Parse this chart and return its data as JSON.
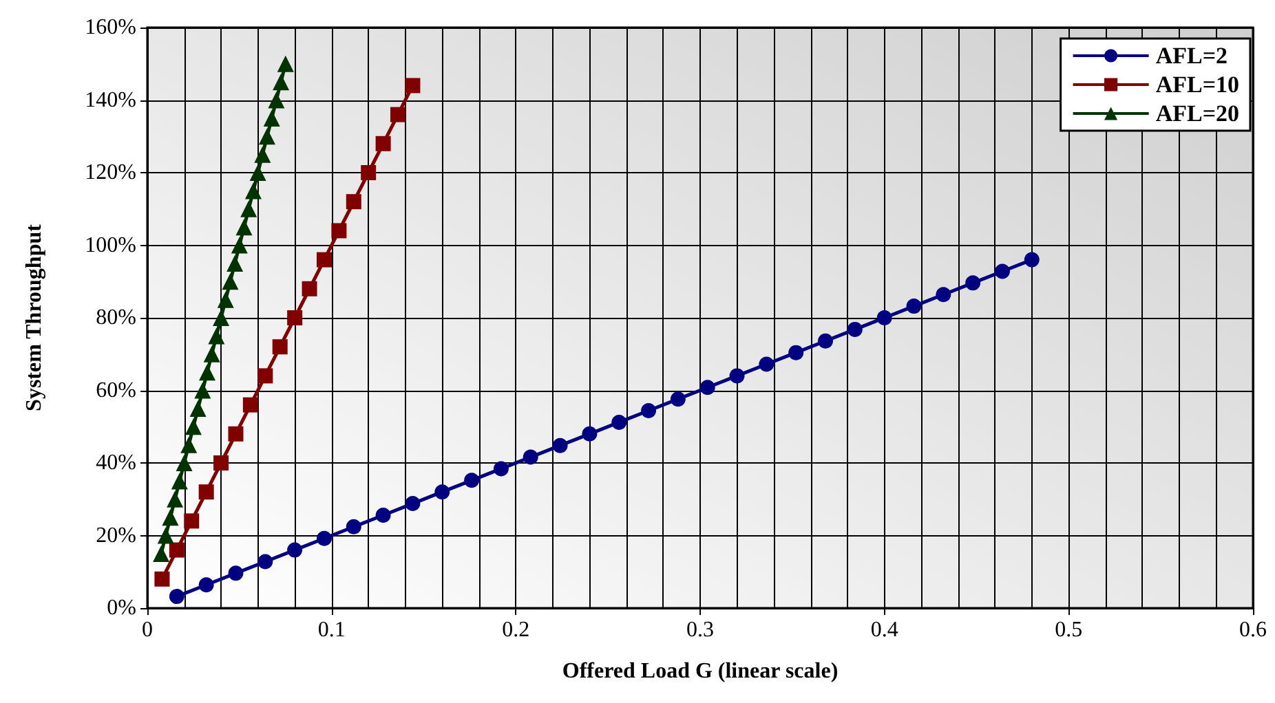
{
  "chart_data": {
    "type": "line",
    "xlabel": "Offered Load G (linear scale)",
    "ylabel": "System Throughput",
    "xlim": [
      0,
      0.6
    ],
    "xticks": [
      0,
      0.1,
      0.2,
      0.3,
      0.4,
      0.5,
      0.6
    ],
    "ylim": [
      0,
      160
    ],
    "yticks": [
      {
        "value": 0,
        "label": "0%"
      },
      {
        "value": 20,
        "label": "20%"
      },
      {
        "value": 40,
        "label": "40%"
      },
      {
        "value": 60,
        "label": "60%"
      },
      {
        "value": 80,
        "label": "80%"
      },
      {
        "value": 100,
        "label": "100%"
      },
      {
        "value": 120,
        "label": "120%"
      },
      {
        "value": 140,
        "label": "140%"
      },
      {
        "value": 160,
        "label": "160%"
      }
    ],
    "grid": true,
    "legend": "top right",
    "series": [
      {
        "name": "AFL=2",
        "color": "#000080",
        "marker": "circle",
        "x": [
          0.016,
          0.032,
          0.048,
          0.064,
          0.08,
          0.096,
          0.112,
          0.128,
          0.144,
          0.16,
          0.176,
          0.192,
          0.208,
          0.224,
          0.24,
          0.256,
          0.272,
          0.288,
          0.304,
          0.32,
          0.336,
          0.352,
          0.368,
          0.384,
          0.4,
          0.416,
          0.432,
          0.448,
          0.464,
          0.48
        ],
        "values": [
          3.2,
          6.4,
          9.6,
          12.8,
          16,
          19.2,
          22.4,
          25.6,
          28.8,
          32,
          35.2,
          38.4,
          41.6,
          44.8,
          48,
          51.2,
          54.4,
          57.6,
          60.8,
          64,
          67.2,
          70.4,
          73.6,
          76.8,
          80,
          83.2,
          86.4,
          89.6,
          92.8,
          96
        ]
      },
      {
        "name": "AFL=10",
        "color": "#800000",
        "marker": "square",
        "x": [
          0.008,
          0.016,
          0.024,
          0.032,
          0.04,
          0.048,
          0.056,
          0.064,
          0.072,
          0.08,
          0.088,
          0.096,
          0.104,
          0.112,
          0.12,
          0.128,
          0.136,
          0.144
        ],
        "values": [
          8,
          16,
          24,
          32,
          40,
          48,
          56,
          64,
          72,
          80,
          88,
          96,
          104,
          112,
          120,
          128,
          136,
          144
        ]
      },
      {
        "name": "AFL=20",
        "color": "#003300",
        "marker": "triangle",
        "x": [
          0.0075,
          0.01,
          0.0125,
          0.015,
          0.0175,
          0.02,
          0.0225,
          0.025,
          0.0275,
          0.03,
          0.0325,
          0.035,
          0.0375,
          0.04,
          0.0425,
          0.045,
          0.0475,
          0.05,
          0.0525,
          0.055,
          0.0575,
          0.06,
          0.0625,
          0.065,
          0.0675,
          0.07,
          0.0725,
          0.075
        ],
        "values": [
          15,
          20,
          25,
          30,
          35,
          40,
          45,
          50,
          55,
          60,
          65,
          70,
          75,
          80,
          85,
          90,
          95,
          100,
          105,
          110,
          115,
          120,
          125,
          130,
          135,
          140,
          145,
          150
        ]
      }
    ]
  }
}
